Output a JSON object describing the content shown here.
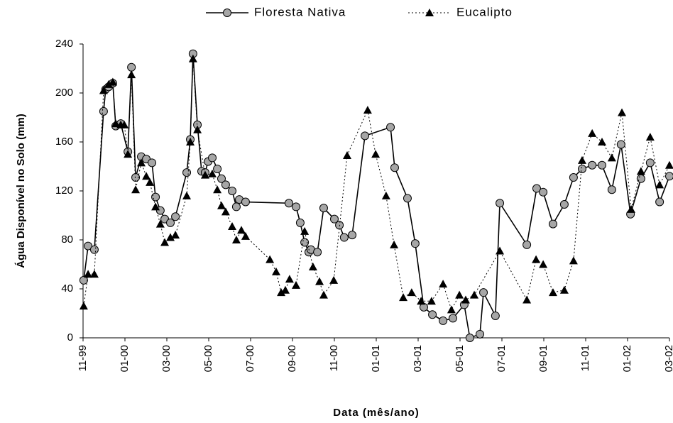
{
  "chart_data": {
    "type": "line",
    "y_label": "Água Disponível no Solo (mm)",
    "x_label": "Data (mês/ano)",
    "xlim": [
      0,
      28
    ],
    "xticks": [
      {
        "value": 0,
        "label": "11-99"
      },
      {
        "value": 2,
        "label": "01-00"
      },
      {
        "value": 4,
        "label": "03-00"
      },
      {
        "value": 6,
        "label": "05-00"
      },
      {
        "value": 8,
        "label": "07-00"
      },
      {
        "value": 10,
        "label": "09-00"
      },
      {
        "value": 12,
        "label": "11-00"
      },
      {
        "value": 14,
        "label": "01-01"
      },
      {
        "value": 16,
        "label": "03-01"
      },
      {
        "value": 18,
        "label": "05-01"
      },
      {
        "value": 20,
        "label": "07-01"
      },
      {
        "value": 22,
        "label": "09-01"
      },
      {
        "value": 24,
        "label": "11-01"
      },
      {
        "value": 26,
        "label": "01-02"
      },
      {
        "value": 28,
        "label": "03-02"
      }
    ],
    "ylim": [
      0,
      240
    ],
    "yticks": [
      0,
      40,
      80,
      120,
      160,
      200,
      240
    ],
    "grid": false,
    "series": [
      {
        "name": "Floresta Nativa",
        "color": "#000000",
        "marker": "circle",
        "marker_color": "#a6a6a6",
        "line": "solid",
        "x": [
          0.03,
          0.24,
          0.54,
          0.98,
          1.08,
          1.22,
          1.42,
          1.56,
          1.8,
          2.14,
          2.31,
          2.51,
          2.78,
          3.02,
          3.29,
          3.46,
          3.69,
          3.9,
          4.17,
          4.41,
          4.95,
          5.12,
          5.25,
          5.46,
          5.66,
          5.83,
          5.97,
          6.17,
          6.41,
          6.61,
          6.81,
          7.12,
          7.32,
          7.46,
          7.76,
          9.83,
          10.17,
          10.37,
          10.58,
          10.78,
          10.88,
          11.19,
          11.49,
          12.0,
          12.24,
          12.47,
          12.85,
          13.46,
          14.68,
          14.88,
          15.49,
          15.86,
          16.27,
          16.68,
          17.19,
          17.66,
          18.2,
          18.47,
          18.95,
          19.12,
          19.69,
          19.9,
          21.19,
          21.66,
          21.97,
          22.44,
          22.98,
          23.42,
          23.83,
          24.31,
          24.78,
          25.25,
          25.69,
          26.14,
          26.64,
          27.08,
          27.53,
          28.0
        ],
        "values": [
          47,
          75,
          72,
          185,
          203,
          205,
          208,
          173,
          175,
          152,
          221,
          131,
          148,
          146,
          143,
          115,
          104,
          97,
          94,
          99,
          135,
          162,
          232,
          174,
          136,
          135,
          144,
          147,
          138,
          130,
          125,
          120,
          107,
          113,
          111,
          110,
          107,
          94,
          78,
          70,
          72,
          70,
          106,
          97,
          92,
          82,
          84,
          165,
          172,
          139,
          114,
          77,
          25,
          19,
          14,
          16,
          27,
          0,
          3,
          37,
          18,
          110,
          76,
          122,
          119,
          93,
          109,
          131,
          138,
          141,
          141,
          121,
          158,
          101,
          130,
          143,
          111,
          132
        ]
      },
      {
        "name": "Eucalipto",
        "color": "#000000",
        "marker": "triangle",
        "marker_color": "#000000",
        "line": "dotted",
        "x": [
          0.03,
          0.24,
          0.54,
          0.98,
          1.22,
          1.42,
          1.56,
          1.8,
          1.97,
          2.14,
          2.31,
          2.51,
          2.78,
          3.02,
          3.19,
          3.46,
          3.69,
          3.9,
          4.17,
          4.41,
          4.95,
          5.12,
          5.25,
          5.46,
          5.83,
          6.17,
          6.41,
          6.61,
          6.81,
          7.12,
          7.32,
          7.56,
          7.76,
          8.92,
          9.22,
          9.46,
          9.66,
          9.86,
          10.17,
          10.58,
          10.98,
          11.29,
          11.49,
          11.97,
          12.61,
          13.59,
          13.97,
          14.47,
          14.85,
          15.29,
          15.69,
          16.14,
          16.64,
          17.19,
          17.59,
          17.97,
          18.27,
          18.68,
          19.9,
          21.19,
          21.63,
          21.97,
          22.44,
          22.98,
          23.42,
          23.83,
          24.31,
          24.78,
          25.25,
          25.73,
          26.17,
          26.64,
          27.08,
          27.53,
          28.0
        ],
        "values": [
          26,
          52,
          52,
          202,
          207,
          209,
          175,
          174,
          174,
          150,
          215,
          121,
          143,
          132,
          127,
          107,
          93,
          78,
          82,
          84,
          116,
          160,
          228,
          170,
          133,
          134,
          121,
          108,
          103,
          91,
          80,
          88,
          83,
          64,
          54,
          37,
          39,
          48,
          43,
          87,
          58,
          46,
          35,
          47,
          149,
          186,
          150,
          116,
          76,
          33,
          37,
          30,
          30,
          44,
          23,
          35,
          31,
          35,
          71,
          31,
          64,
          60,
          37,
          39,
          63,
          145,
          167,
          160,
          147,
          184,
          105,
          136,
          164,
          125,
          141
        ]
      }
    ]
  }
}
